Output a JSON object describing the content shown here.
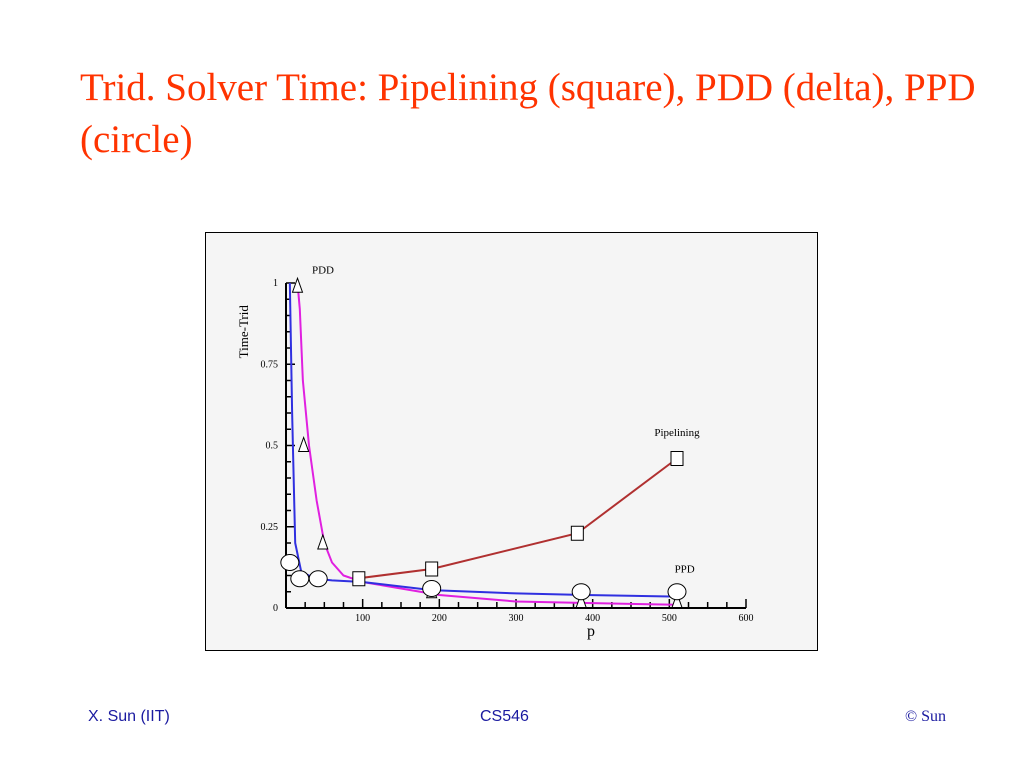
{
  "slide": {
    "title": "Trid. Solver Time: Pipelining (square), PDD (delta), PPD (circle)"
  },
  "footer": {
    "left": "X. Sun (IIT)",
    "center": "CS546",
    "right": "© Sun"
  },
  "chart_data": {
    "type": "line",
    "title": "",
    "xlabel": "p",
    "ylabel": "Time-Trid",
    "xlim": [
      0,
      600
    ],
    "ylim": [
      0,
      1
    ],
    "x_ticks": [
      100,
      200,
      300,
      400,
      500,
      600
    ],
    "x_tick_labels": [
      "100",
      "200",
      "300",
      "400",
      "500",
      "600"
    ],
    "y_ticks": [
      0,
      0.25,
      0.5,
      0.75,
      1
    ],
    "y_tick_labels": [
      "0",
      "0.25",
      "0.5",
      "0.75",
      "1"
    ],
    "grid": false,
    "series": [
      {
        "name": "Pipelining",
        "marker": "square",
        "color": "#b03030",
        "x": [
          90,
          190,
          380,
          510
        ],
        "y": [
          0.09,
          0.12,
          0.23,
          0.46
        ],
        "marker_x": [
          95,
          190,
          380,
          510
        ],
        "marker_y": [
          0.09,
          0.12,
          0.23,
          0.46
        ]
      },
      {
        "name": "PDD",
        "marker": "triangle",
        "color": "#e020e0",
        "x": [
          15,
          18,
          22,
          30,
          40,
          50,
          60,
          75,
          100,
          150,
          200,
          300,
          400,
          510
        ],
        "y": [
          1.0,
          0.92,
          0.7,
          0.5,
          0.33,
          0.2,
          0.14,
          0.1,
          0.08,
          0.06,
          0.04,
          0.02,
          0.015,
          0.01
        ],
        "marker_x": [
          15,
          23,
          48,
          190,
          385,
          510
        ],
        "marker_y": [
          0.99,
          0.5,
          0.2,
          0.05,
          0.02,
          0.02
        ]
      },
      {
        "name": "PPD",
        "marker": "circle",
        "color": "#3030e0",
        "x": [
          5,
          8,
          12,
          20,
          40,
          60,
          100,
          190,
          300,
          390,
          510
        ],
        "y": [
          1.0,
          0.6,
          0.2,
          0.11,
          0.09,
          0.085,
          0.08,
          0.055,
          0.045,
          0.04,
          0.035
        ],
        "marker_x": [
          5,
          18,
          42,
          190,
          385,
          510
        ],
        "marker_y": [
          0.14,
          0.09,
          0.09,
          0.06,
          0.05,
          0.05
        ]
      }
    ],
    "annotations": [
      {
        "text": "PDD",
        "x": 30,
        "y": 1.03
      },
      {
        "text": "Pipelining",
        "x": 510,
        "y": 0.53
      },
      {
        "text": "PPD",
        "x": 520,
        "y": 0.11
      }
    ]
  }
}
